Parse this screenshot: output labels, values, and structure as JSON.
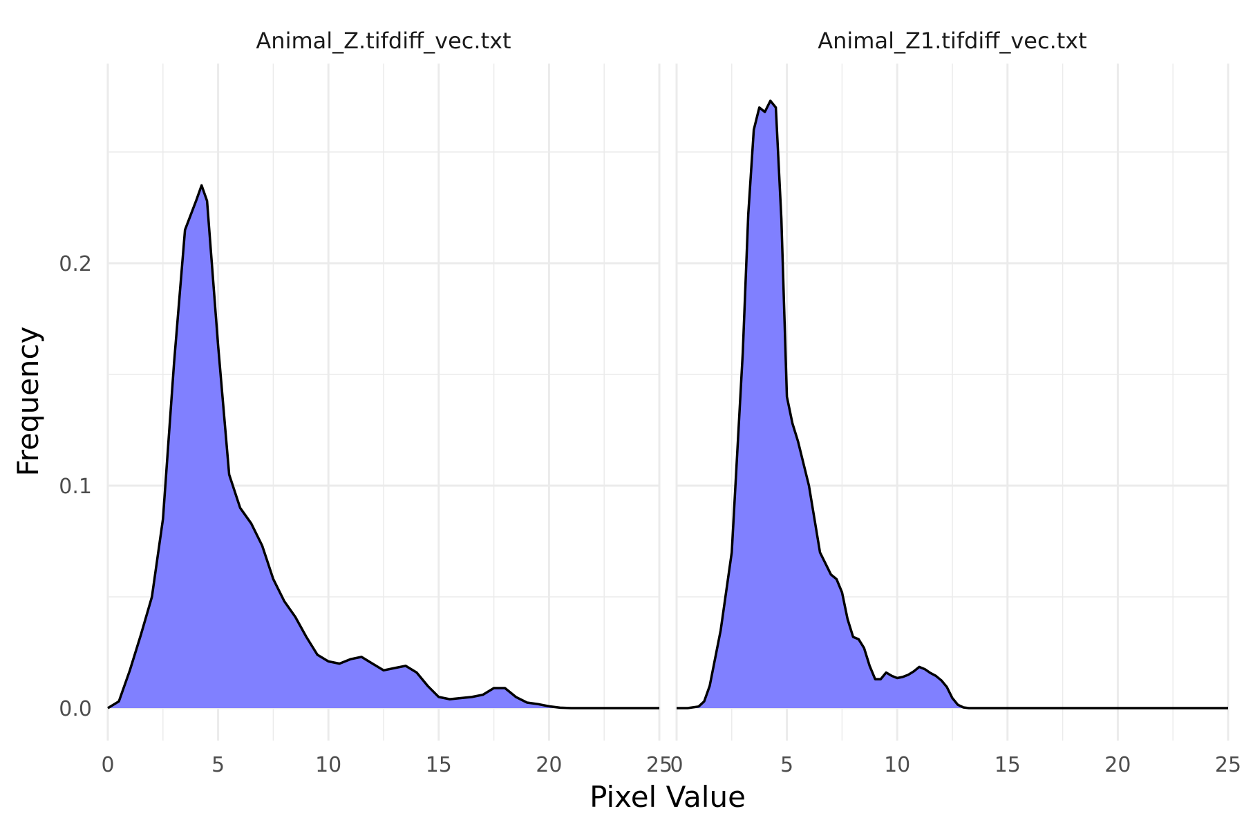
{
  "chart_data": {
    "type": "area",
    "xlabel": "Pixel Value",
    "ylabel": "Frequency",
    "xlim": [
      0,
      25
    ],
    "ylim": [
      0,
      0.275
    ],
    "x_ticks": [
      0,
      5,
      10,
      15,
      20,
      25
    ],
    "x_tick_labels": [
      "0",
      "5",
      "10",
      "15",
      "20",
      "25"
    ],
    "y_ticks": [
      0.0,
      0.1,
      0.2
    ],
    "y_tick_labels": [
      "0.0",
      "0.1",
      "0.2"
    ],
    "grid": true,
    "fill_color": "#8080ff",
    "line_color": "#000000",
    "panels": [
      {
        "title": "Animal_Z.tifdiff_vec.txt",
        "x": [
          0,
          0.5,
          1,
          1.5,
          2,
          2.5,
          3,
          3.5,
          4,
          4.25,
          4.5,
          5,
          5.5,
          6,
          6.5,
          7,
          7.5,
          8,
          8.5,
          9,
          9.5,
          10,
          10.5,
          11,
          11.5,
          12,
          12.5,
          13,
          13.5,
          14,
          14.5,
          15,
          15.5,
          16,
          16.5,
          17,
          17.5,
          18,
          18.5,
          19,
          19.5,
          20,
          20.5,
          21,
          22,
          23,
          24,
          25
        ],
        "y": [
          0.0,
          0.003,
          0.017,
          0.033,
          0.05,
          0.085,
          0.155,
          0.215,
          0.228,
          0.235,
          0.228,
          0.163,
          0.105,
          0.09,
          0.083,
          0.073,
          0.058,
          0.048,
          0.041,
          0.032,
          0.024,
          0.021,
          0.02,
          0.022,
          0.023,
          0.02,
          0.017,
          0.018,
          0.019,
          0.016,
          0.01,
          0.005,
          0.004,
          0.0045,
          0.005,
          0.006,
          0.009,
          0.009,
          0.005,
          0.0025,
          0.0018,
          0.0008,
          0.0002,
          0.0,
          0.0,
          0.0,
          0.0,
          0.0
        ]
      },
      {
        "title": "Animal_Z1.tifdiff_vec.txt",
        "x": [
          0,
          0.5,
          1,
          1.25,
          1.5,
          2,
          2.5,
          3,
          3.25,
          3.5,
          3.75,
          4,
          4.25,
          4.5,
          4.75,
          5,
          5.25,
          5.5,
          6,
          6.5,
          7,
          7.25,
          7.5,
          7.75,
          8,
          8.25,
          8.5,
          8.75,
          9,
          9.25,
          9.5,
          9.75,
          10,
          10.25,
          10.5,
          10.75,
          11,
          11.25,
          11.5,
          11.75,
          12,
          12.25,
          12.5,
          12.75,
          13,
          13.25,
          13.5,
          14,
          15,
          17.5,
          20,
          22.5,
          25
        ],
        "y": [
          0.0,
          0.0,
          0.0007,
          0.003,
          0.01,
          0.035,
          0.07,
          0.16,
          0.222,
          0.26,
          0.27,
          0.268,
          0.273,
          0.27,
          0.22,
          0.14,
          0.128,
          0.12,
          0.1,
          0.07,
          0.06,
          0.058,
          0.052,
          0.04,
          0.032,
          0.031,
          0.027,
          0.019,
          0.013,
          0.013,
          0.016,
          0.0145,
          0.0135,
          0.014,
          0.015,
          0.0165,
          0.0185,
          0.0175,
          0.0158,
          0.0145,
          0.0125,
          0.0095,
          0.0045,
          0.0015,
          0.0003,
          0.0,
          0.0,
          0.0,
          0.0,
          0.0,
          0.0,
          0.0,
          0.0
        ]
      }
    ]
  }
}
